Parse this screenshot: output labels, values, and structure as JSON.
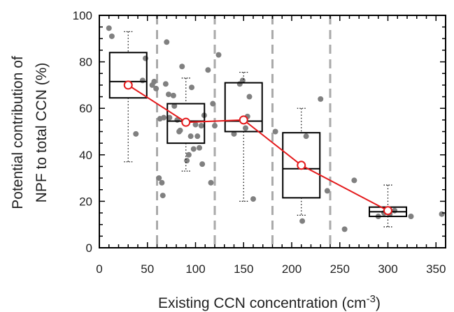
{
  "chart_data": {
    "type": "box",
    "xlabel": {
      "main": "Existing CCN concentration (cm",
      "sup": "-3",
      "tail": ")"
    },
    "ylabel": [
      "Potential contribution of",
      "NPF to total CCN (%)"
    ],
    "xlim": [
      0,
      360
    ],
    "ylim": [
      0,
      100
    ],
    "xticks": [
      0,
      50,
      100,
      150,
      200,
      250,
      300,
      350
    ],
    "yticks": [
      0,
      20,
      40,
      60,
      80,
      100
    ],
    "bin_dividers": [
      60,
      120,
      180,
      240
    ],
    "boxes": [
      {
        "x": 30,
        "whisker_low": 37,
        "q1": 64.5,
        "median": 71.5,
        "q3": 84,
        "whisker_high": 93,
        "mean": 70
      },
      {
        "x": 90,
        "whisker_low": 33,
        "q1": 45,
        "median": 54.5,
        "q3": 62,
        "whisker_high": 73,
        "mean": 54
      },
      {
        "x": 150,
        "whisker_low": 20,
        "q1": 50,
        "median": 54.5,
        "q3": 71,
        "whisker_high": 75.5,
        "mean": 55
      },
      {
        "x": 210,
        "whisker_low": 14,
        "q1": 21.5,
        "median": 34,
        "q3": 49.5,
        "whisker_high": 60,
        "mean": 35.5
      },
      {
        "x": 300,
        "whisker_low": 9,
        "q1": 13.5,
        "median": 15.5,
        "q3": 17.5,
        "whisker_high": 27,
        "mean": 16
      }
    ],
    "scatter": [
      [
        10,
        94.5
      ],
      [
        13,
        91
      ],
      [
        38,
        49
      ],
      [
        45,
        72
      ],
      [
        48,
        81.5
      ],
      [
        55,
        70
      ],
      [
        57,
        71.5
      ],
      [
        59,
        68.5
      ],
      [
        62,
        30
      ],
      [
        63,
        55.5
      ],
      [
        65,
        28
      ],
      [
        66,
        22.5
      ],
      [
        67,
        56
      ],
      [
        69,
        70.5
      ],
      [
        70,
        88.5
      ],
      [
        72,
        66
      ],
      [
        73,
        56
      ],
      [
        77,
        65.5
      ],
      [
        78,
        61
      ],
      [
        81,
        55
      ],
      [
        83,
        50
      ],
      [
        84,
        50.5
      ],
      [
        86,
        78
      ],
      [
        89,
        54
      ],
      [
        91,
        37.5
      ],
      [
        93,
        40
      ],
      [
        95,
        48
      ],
      [
        96,
        69
      ],
      [
        98,
        42.5
      ],
      [
        100,
        53
      ],
      [
        102,
        48
      ],
      [
        104,
        43
      ],
      [
        106,
        52.5
      ],
      [
        107,
        36
      ],
      [
        109,
        57
      ],
      [
        113,
        76.5
      ],
      [
        116,
        28
      ],
      [
        118,
        62
      ],
      [
        120,
        52.5
      ],
      [
        124,
        83
      ],
      [
        140,
        49
      ],
      [
        146,
        70.5
      ],
      [
        149,
        72
      ],
      [
        152,
        51.5
      ],
      [
        154,
        56.5
      ],
      [
        156,
        65
      ],
      [
        160,
        21
      ],
      [
        183,
        50
      ],
      [
        211,
        11.5
      ],
      [
        215,
        48
      ],
      [
        230,
        64
      ],
      [
        237,
        24.5
      ],
      [
        255,
        8
      ],
      [
        265,
        29
      ],
      [
        290,
        13.5
      ],
      [
        296,
        15
      ],
      [
        302,
        14.5
      ],
      [
        307,
        16
      ],
      [
        324,
        13.5
      ],
      [
        356,
        14.5
      ]
    ]
  },
  "colors": {
    "box": "#000000",
    "scatter": "#808080",
    "mean_line": "#e41a1c",
    "divider": "#aaaaaa",
    "axis": "#000000"
  }
}
